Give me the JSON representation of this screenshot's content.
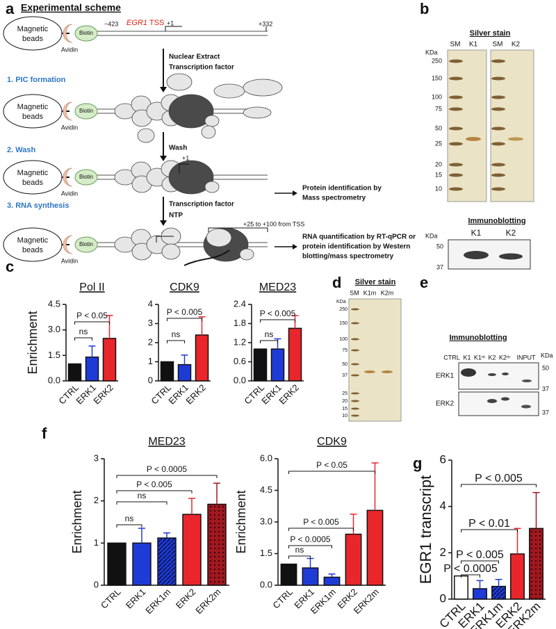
{
  "panel_labels": [
    "a",
    "b",
    "c",
    "d",
    "e",
    "f",
    "g"
  ],
  "panel_a": {
    "title": "Experimental scheme",
    "rows": [
      {
        "beads": [
          "Magnetic",
          "beads"
        ],
        "avidin": "Avidin",
        "biotin": "Biotin"
      },
      {
        "beads": [
          "Magnetic",
          "beads"
        ],
        "avidin": "Avidin",
        "biotin": "Biotin"
      },
      {
        "beads": [
          "Magnetic",
          "beads"
        ],
        "avidin": "Avidin",
        "biotin": "Biotin"
      },
      {
        "beads": [
          "Magnetic",
          "beads"
        ],
        "avidin": "Avidin",
        "biotin": "Biotin"
      }
    ],
    "upstream": "−423",
    "gene": "EGR1",
    "gene_suffix": "TSS",
    "tss": "+1",
    "downstream": "+332",
    "step1_inputs": [
      "Nuclear Extract",
      "Transcription factor"
    ],
    "step1": "1. PIC formation",
    "wash_arrow": "Wash",
    "step2": "2. Wash",
    "row3_tss": "+1",
    "output2": [
      "Protein identification by",
      "Mass spectrometry"
    ],
    "step3": "3. RNA synthesis",
    "step3_inputs": [
      "Transcription factor",
      "NTP"
    ],
    "rna_span": "+25 to +100 from TSS",
    "row4_tss": "+1",
    "output3": [
      "RNA quantification by RT-qPCR or",
      "protein identification by Western",
      "blotting/mass spectrometry"
    ]
  },
  "panel_b": {
    "title": "Silver stain",
    "lanes": [
      "SM",
      "K1",
      "SM",
      "K2"
    ],
    "unit": "KDa",
    "markers": [
      250,
      150,
      100,
      75,
      50,
      25,
      20,
      15,
      10
    ],
    "blot_title": "Immunoblotting",
    "blot_unit": "KDa",
    "blot_lanes": [
      "K1",
      "K2"
    ],
    "blot_markers": [
      50,
      37
    ]
  },
  "panel_d": {
    "title": "Silver stain",
    "lanes": [
      "SM",
      "K1m",
      "K2m"
    ],
    "unit": "KDa",
    "markers": [
      250,
      150,
      100,
      75,
      50,
      37,
      25,
      20,
      15,
      10
    ]
  },
  "panel_e": {
    "title": "Immunoblotting",
    "lanes": [
      "CTRL",
      "K1",
      "K1ᵐ",
      "K2",
      "K2ᵐ",
      "INPUT"
    ],
    "unit": "KDa",
    "rows": [
      "ERK1",
      "ERK2"
    ],
    "markers": [
      50,
      37,
      37
    ]
  },
  "chart_data": [
    {
      "type": "bar",
      "title": "Pol II",
      "ylabel": "Enrichment",
      "categories": [
        "CTRL",
        "ERK1",
        "ERK2"
      ],
      "values": [
        1.0,
        1.4,
        2.5
      ],
      "errors": [
        null,
        0.65,
        1.35
      ],
      "colors": [
        "#111111",
        "#1f3bd6",
        "#e8262b"
      ],
      "ylim": [
        0,
        4.5
      ],
      "yticks": [
        {
          "value": 0,
          "label": "0.0"
        },
        1.5,
        {
          "value": 3,
          "label": "3.0"
        },
        4.5
      ],
      "annotations": [
        "ns",
        "P < 0.05"
      ]
    },
    {
      "type": "bar",
      "title": "CDK9",
      "categories": [
        "CTRL",
        "ERK1",
        "ERK2"
      ],
      "values": [
        1.0,
        0.85,
        2.4
      ],
      "errors": [
        null,
        0.5,
        0.95
      ],
      "colors": [
        "#111111",
        "#1f3bd6",
        "#e8262b"
      ],
      "ylim": [
        0,
        4
      ],
      "yticks": [
        0,
        1,
        2,
        3,
        4
      ],
      "annotations": [
        "ns",
        "P < 0.005"
      ]
    },
    {
      "type": "bar",
      "title": "MED23",
      "categories": [
        "CTRL",
        "ERK1",
        "ERK2"
      ],
      "values": [
        1.0,
        1.0,
        1.65
      ],
      "errors": [
        null,
        0.32,
        0.4
      ],
      "colors": [
        "#111111",
        "#1f3bd6",
        "#e8262b"
      ],
      "ylim": [
        0,
        2.4
      ],
      "yticks": [
        {
          "value": 0,
          "label": "0.0"
        },
        0.6,
        1.2,
        1.8,
        2.4
      ],
      "annotations": [
        "ns",
        "P < 0.005"
      ]
    },
    {
      "type": "bar",
      "title": "MED23",
      "ylabel": "Enrichment",
      "categories": [
        "CTRL",
        "ERK1",
        "ERK1m",
        "ERK2",
        "ERK2m"
      ],
      "values": [
        1.0,
        1.0,
        1.12,
        1.68,
        1.92
      ],
      "errors": [
        null,
        0.35,
        0.12,
        0.38,
        0.5
      ],
      "colors": [
        "#111111",
        "#1f3bd6",
        "#1f3bd6",
        "#e8262b",
        "#a01820"
      ],
      "hatch": [
        null,
        null,
        "stripe",
        null,
        "dots"
      ],
      "ylim": [
        0,
        3
      ],
      "yticks": [
        0,
        1,
        2,
        3
      ],
      "annotations": [
        "ns",
        "ns",
        "P < 0.005",
        "P < 0.0005"
      ]
    },
    {
      "type": "bar",
      "title": "CDK9",
      "ylabel": "Enrichment",
      "categories": [
        "CTRL",
        "ERK1",
        "ERK1m",
        "ERK2",
        "ERK2m"
      ],
      "values": [
        1.0,
        0.82,
        0.38,
        2.42,
        3.55
      ],
      "errors": [
        null,
        0.45,
        0.15,
        0.95,
        2.25
      ],
      "colors": [
        "#111111",
        "#1f3bd6",
        "#1f3bd6",
        "#e8262b",
        "#e8262b"
      ],
      "ylim": [
        0,
        6
      ],
      "yticks": [
        {
          "value": 0,
          "label": "0.0"
        },
        1.5,
        {
          "value": 3,
          "label": "3.0"
        },
        4.5,
        {
          "value": 6,
          "label": "6.0"
        }
      ],
      "annotations": [
        "ns",
        "P < 0.0005",
        "P < 0.005",
        "P < 0.05"
      ]
    },
    {
      "type": "bar",
      "ylabel": "EGR1 transcript",
      "categories": [
        "CTRL",
        "ERK1",
        "ERK1m",
        "ERK2",
        "ERK2m"
      ],
      "values": [
        1.0,
        0.45,
        0.55,
        1.95,
        3.05
      ],
      "errors": [
        null,
        0.35,
        0.3,
        1.1,
        1.55
      ],
      "colors": [
        "#ffffff",
        "#1f3bd6",
        "#1f3bd6",
        "#e8262b",
        "#a01820"
      ],
      "hatch": [
        null,
        null,
        "stripe",
        null,
        "dots"
      ],
      "ylim": [
        0,
        6
      ],
      "yticks": [
        0,
        2,
        4,
        6
      ],
      "annotations": [
        "P < 0.0005",
        "P < 0.005",
        "P < 0.01",
        "P < 0.005"
      ]
    }
  ]
}
